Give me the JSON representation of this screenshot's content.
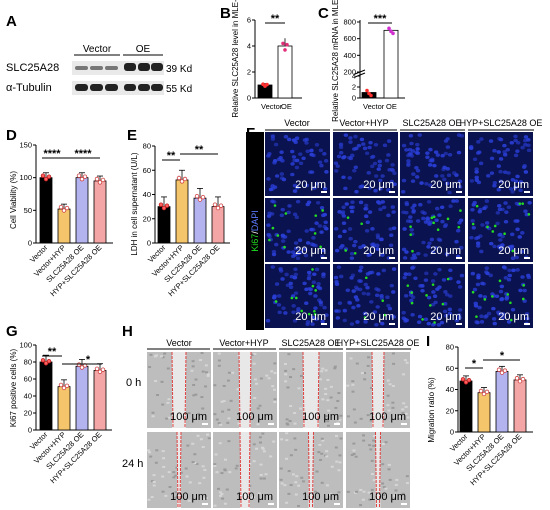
{
  "panel_labels": {
    "A": "A",
    "B": "B",
    "C": "C",
    "D": "D",
    "E": "E",
    "F": "F",
    "G": "G",
    "H": "H",
    "I": "I"
  },
  "western": {
    "group_labels": [
      "Vector",
      "OE"
    ],
    "rows": [
      {
        "name": "SLC25A28",
        "size": "39 Kd"
      },
      {
        "name": "α-Tubulin",
        "size": "55 Kd"
      }
    ]
  },
  "panel_B": {
    "ylabel": "Relative SLC25A28 level in MLE-12",
    "ticks": [
      "0",
      "2",
      "4",
      "6"
    ],
    "categories": [
      "Vector",
      "OE"
    ],
    "sig": "**"
  },
  "panel_C": {
    "ylabel": "Relative SLC25A28 mRNA in MLE-12",
    "ticks": [
      "0",
      "2",
      "4",
      "200",
      "400",
      "600",
      "800"
    ],
    "categories": [
      "Vector",
      "OE"
    ],
    "sig": "***"
  },
  "panel_D": {
    "ylabel": "Cell Viability (%)",
    "ticks": [
      "0",
      "50",
      "100",
      "150"
    ],
    "categories": [
      "Vector",
      "Vector+HYP",
      "SLC25A28 OE",
      "HYP+SLC25A28 OE"
    ],
    "sig": [
      "****",
      "****"
    ]
  },
  "panel_E": {
    "ylabel": "LDH in cell supernatant (U/L)",
    "ticks": [
      "0",
      "20",
      "40",
      "60",
      "80"
    ],
    "categories": [
      "Vector",
      "Vector+HYP",
      "SLC25A28 OE",
      "HYP+SLC25A28 OE"
    ],
    "sig": [
      "**",
      "**"
    ]
  },
  "panel_F": {
    "columns": [
      "Vector",
      "Vector+HYP",
      "SLC25A28 OE",
      "HYP+SLC25A28 OE"
    ],
    "stain_ki67": "Ki67",
    "stain_sep": "/",
    "stain_dapi": "DAPI",
    "scale": "20 μm"
  },
  "panel_G": {
    "ylabel": "Ki67 positive cells (%)",
    "ticks": [
      "0",
      "20",
      "40",
      "60",
      "80",
      "100"
    ],
    "categories": [
      "Vector",
      "Vector+HYP",
      "SLC25A28 OE",
      "HYP+SLC25A28 OE"
    ],
    "sig": [
      "**",
      "*"
    ]
  },
  "panel_H": {
    "columns": [
      "Vector",
      "Vector+HYP",
      "SLC25A28 OE",
      "HYP+SLC25A28 OE"
    ],
    "rows": [
      "0 h",
      "24 h"
    ],
    "scale": "100 μm"
  },
  "panel_I": {
    "ylabel": "Migration ratio (%)",
    "ticks": [
      "0",
      "20",
      "40",
      "60",
      "80"
    ],
    "categories": [
      "Vector",
      "Vector+HYP",
      "SLC25A28 OE",
      "HYP+SLC25A28 OE"
    ],
    "sig": [
      "*",
      "*"
    ]
  },
  "colors": {
    "vector": "#000000",
    "hyp": "#f5c56b",
    "oe": "#b3b3f0",
    "hypoe": "#f4a6a6",
    "pointB": "#e0307a",
    "pointC": "#d030d0",
    "ki67": "#22dd22",
    "dapi": "#2a3fd8"
  },
  "chart_data": [
    {
      "type": "bar",
      "id": "B",
      "categories": [
        "Vector",
        "OE"
      ],
      "values": [
        1.0,
        4.0
      ],
      "ylim": [
        0,
        6
      ],
      "ylabel": "Relative SLC25A28 level in MLE-12"
    },
    {
      "type": "bar",
      "id": "C",
      "categories": [
        "Vector",
        "OE"
      ],
      "values": [
        1.0,
        700
      ],
      "ylim": [
        0,
        800
      ],
      "ylabel": "Relative SLC25A28 mRNA in MLE-12"
    },
    {
      "type": "bar",
      "id": "D",
      "categories": [
        "Vector",
        "Vector+HYP",
        "SLC25A28 OE",
        "HYP+SLC25A28 OE"
      ],
      "values": [
        100,
        52,
        100,
        95
      ],
      "ylim": [
        0,
        150
      ],
      "ylabel": "Cell Viability (%)"
    },
    {
      "type": "bar",
      "id": "E",
      "categories": [
        "Vector",
        "Vector+HYP",
        "SLC25A28 OE",
        "HYP+SLC25A28 OE"
      ],
      "values": [
        30,
        52,
        37,
        30
      ],
      "ylim": [
        0,
        80
      ],
      "ylabel": "LDH in cell supernatant (U/L)"
    },
    {
      "type": "bar",
      "id": "G",
      "categories": [
        "Vector",
        "Vector+HYP",
        "SLC25A28 OE",
        "HYP+SLC25A28 OE"
      ],
      "values": [
        80,
        51,
        75,
        70
      ],
      "ylim": [
        0,
        100
      ],
      "ylabel": "Ki67 positive cells (%)"
    },
    {
      "type": "bar",
      "id": "I",
      "categories": [
        "Vector",
        "Vector+HYP",
        "SLC25A28 OE",
        "HYP+SLC25A28 OE"
      ],
      "values": [
        48,
        37,
        57,
        49
      ],
      "ylim": [
        0,
        80
      ],
      "ylabel": "Migration ratio (%)"
    }
  ]
}
